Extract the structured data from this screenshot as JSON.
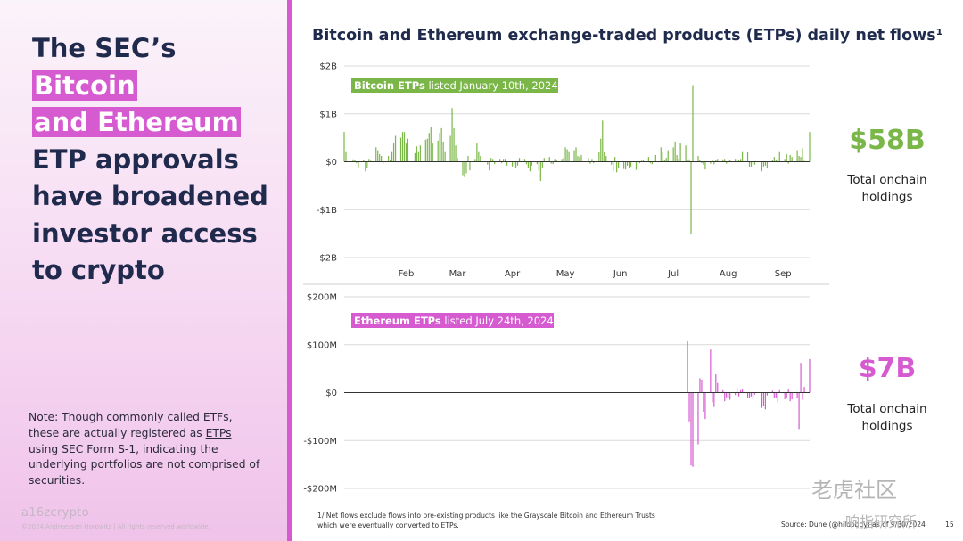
{
  "headline": {
    "line1": "The SEC’s ",
    "hl1": "Bitcoin",
    "hl2": "and Ethereum",
    "rest1": "ETP approvals",
    "rest2": "have broadened",
    "rest3": "investor access",
    "rest4": "to crypto"
  },
  "note": {
    "before": "Note: Though commonly called ETFs, these are actually registered as ",
    "link": "ETPs",
    "after": " using SEC Form S-1, indicating the underlying portfolios are not comprised of securities."
  },
  "logo": "a16zcrypto",
  "copyright": "©2024 Andreessen Horowitz | All rights reserved worldwide.",
  "chart_title": "Bitcoin and Ethereum exchange-traded products (ETPs) daily net flows¹",
  "colors": {
    "btc": "#7ab648",
    "eth": "#d65bd1",
    "title": "#1f2a4d"
  },
  "kpis": [
    {
      "value": "$58B",
      "label": "Total onchain holdings",
      "color": "#7ab648"
    },
    {
      "value": "$7B",
      "label": "Total onchain holdings",
      "color": "#d65bd1"
    }
  ],
  "footnote": "1/ Net flows exclude flows into pre-existing products like the Grayscale Bitcoin and Ethereum Trusts which were eventually converted to ETPs.",
  "source": "Source: Dune (@hildobby) as of 9/30/2024",
  "page_number": "15",
  "watermark": {
    "line1": "老虎社区",
    "line2": "响指研究所"
  },
  "chart_data": [
    {
      "type": "bar",
      "name": "Bitcoin",
      "annotation_bold": "Bitcoin ETPs",
      "annotation_rest": " listed January 10th, 2024",
      "unit": "$B",
      "ylim": [
        -2,
        2
      ],
      "yticks": [
        2,
        1,
        0,
        -1,
        -2
      ],
      "ytick_labels": [
        "$2B",
        "$1B",
        "$0",
        "-$1B",
        "-$2B"
      ],
      "xlim": [
        "2024-01-11",
        "2024-09-30"
      ],
      "month_labels": [
        {
          "label": "Feb",
          "date": "2024-02-15"
        },
        {
          "label": "Mar",
          "date": "2024-03-15"
        },
        {
          "label": "Apr",
          "date": "2024-04-15"
        },
        {
          "label": "May",
          "date": "2024-05-15"
        },
        {
          "label": "Jun",
          "date": "2024-06-15"
        },
        {
          "label": "Jul",
          "date": "2024-07-15"
        },
        {
          "label": "Aug",
          "date": "2024-08-15"
        },
        {
          "label": "Sep",
          "date": "2024-09-15"
        }
      ],
      "points": [
        [
          "2024-01-11",
          0.62
        ],
        [
          "2024-01-12",
          0.22
        ],
        [
          "2024-01-16",
          0.05
        ],
        [
          "2024-01-17",
          0.04
        ],
        [
          "2024-01-18",
          -0.03
        ],
        [
          "2024-01-19",
          -0.12
        ],
        [
          "2024-01-22",
          0.03
        ],
        [
          "2024-01-23",
          -0.2
        ],
        [
          "2024-01-24",
          -0.14
        ],
        [
          "2024-01-25",
          0.06
        ],
        [
          "2024-01-26",
          0.02
        ],
        [
          "2024-01-29",
          0.3
        ],
        [
          "2024-01-30",
          0.24
        ],
        [
          "2024-01-31",
          0.16
        ],
        [
          "2024-02-01",
          0.12
        ],
        [
          "2024-02-02",
          -0.04
        ],
        [
          "2024-02-05",
          0.12
        ],
        [
          "2024-02-06",
          0.04
        ],
        [
          "2024-02-07",
          0.22
        ],
        [
          "2024-02-08",
          0.4
        ],
        [
          "2024-02-09",
          0.54
        ],
        [
          "2024-02-12",
          0.5
        ],
        [
          "2024-02-13",
          0.62
        ],
        [
          "2024-02-14",
          0.62
        ],
        [
          "2024-02-15",
          0.38
        ],
        [
          "2024-02-16",
          0.48
        ],
        [
          "2024-02-20",
          0.18
        ],
        [
          "2024-02-21",
          0.32
        ],
        [
          "2024-02-22",
          0.22
        ],
        [
          "2024-02-23",
          0.34
        ],
        [
          "2024-02-26",
          0.46
        ],
        [
          "2024-02-27",
          0.48
        ],
        [
          "2024-02-28",
          0.6
        ],
        [
          "2024-02-29",
          0.72
        ],
        [
          "2024-03-01",
          0.38
        ],
        [
          "2024-03-04",
          0.44
        ],
        [
          "2024-03-05",
          0.6
        ],
        [
          "2024-03-06",
          0.7
        ],
        [
          "2024-03-07",
          0.42
        ],
        [
          "2024-03-08",
          0.22
        ],
        [
          "2024-03-11",
          0.54
        ],
        [
          "2024-03-12",
          1.12
        ],
        [
          "2024-03-13",
          0.7
        ],
        [
          "2024-03-14",
          0.34
        ],
        [
          "2024-03-15",
          0.08
        ],
        [
          "2024-03-18",
          -0.28
        ],
        [
          "2024-03-19",
          -0.32
        ],
        [
          "2024-03-20",
          -0.24
        ],
        [
          "2024-03-21",
          0.12
        ],
        [
          "2024-03-22",
          -0.18
        ],
        [
          "2024-03-25",
          0.06
        ],
        [
          "2024-03-26",
          0.38
        ],
        [
          "2024-03-27",
          0.22
        ],
        [
          "2024-03-28",
          0.12
        ],
        [
          "2024-04-01",
          -0.06
        ],
        [
          "2024-04-02",
          -0.18
        ],
        [
          "2024-04-03",
          0.08
        ],
        [
          "2024-04-04",
          0.06
        ],
        [
          "2024-04-05",
          -0.05
        ],
        [
          "2024-04-08",
          0.06
        ],
        [
          "2024-04-09",
          -0.03
        ],
        [
          "2024-04-10",
          0.06
        ],
        [
          "2024-04-11",
          0.06
        ],
        [
          "2024-04-12",
          -0.08
        ],
        [
          "2024-04-15",
          -0.1
        ],
        [
          "2024-04-16",
          -0.06
        ],
        [
          "2024-04-17",
          -0.14
        ],
        [
          "2024-04-18",
          -0.08
        ],
        [
          "2024-04-19",
          0.08
        ],
        [
          "2024-04-22",
          0.06
        ],
        [
          "2024-04-23",
          -0.05
        ],
        [
          "2024-04-24",
          -0.12
        ],
        [
          "2024-04-25",
          -0.2
        ],
        [
          "2024-04-26",
          -0.08
        ],
        [
          "2024-04-29",
          -0.05
        ],
        [
          "2024-04-30",
          -0.18
        ],
        [
          "2024-05-01",
          -0.4
        ],
        [
          "2024-05-02",
          -0.12
        ],
        [
          "2024-05-03",
          0.08
        ],
        [
          "2024-05-06",
          0.1
        ],
        [
          "2024-05-07",
          -0.04
        ],
        [
          "2024-05-08",
          -0.05
        ],
        [
          "2024-05-09",
          0.06
        ],
        [
          "2024-05-10",
          0.04
        ],
        [
          "2024-05-13",
          0.06
        ],
        [
          "2024-05-14",
          0.08
        ],
        [
          "2024-05-15",
          0.3
        ],
        [
          "2024-05-16",
          0.26
        ],
        [
          "2024-05-17",
          0.22
        ],
        [
          "2024-05-20",
          0.24
        ],
        [
          "2024-05-21",
          0.3
        ],
        [
          "2024-05-22",
          0.12
        ],
        [
          "2024-05-23",
          0.1
        ],
        [
          "2024-05-24",
          0.14
        ],
        [
          "2024-05-28",
          0.08
        ],
        [
          "2024-05-29",
          -0.04
        ],
        [
          "2024-05-30",
          0.06
        ],
        [
          "2024-05-31",
          -0.03
        ],
        [
          "2024-06-03",
          0.2
        ],
        [
          "2024-06-04",
          0.48
        ],
        [
          "2024-06-05",
          0.86
        ],
        [
          "2024-06-06",
          0.2
        ],
        [
          "2024-06-07",
          0.12
        ],
        [
          "2024-06-10",
          -0.06
        ],
        [
          "2024-06-11",
          -0.2
        ],
        [
          "2024-06-12",
          0.1
        ],
        [
          "2024-06-13",
          -0.22
        ],
        [
          "2024-06-14",
          -0.14
        ],
        [
          "2024-06-17",
          -0.15
        ],
        [
          "2024-06-18",
          -0.16
        ],
        [
          "2024-06-19",
          -0.08
        ],
        [
          "2024-06-20",
          -0.14
        ],
        [
          "2024-06-21",
          -0.1
        ],
        [
          "2024-06-24",
          -0.17
        ],
        [
          "2024-06-25",
          0.03
        ],
        [
          "2024-06-26",
          -0.03
        ],
        [
          "2024-06-27",
          0.02
        ],
        [
          "2024-06-28",
          0.04
        ],
        [
          "2024-07-01",
          0.1
        ],
        [
          "2024-07-02",
          -0.03
        ],
        [
          "2024-07-03",
          -0.05
        ],
        [
          "2024-07-05",
          0.14
        ],
        [
          "2024-07-08",
          0.3
        ],
        [
          "2024-07-09",
          0.2
        ],
        [
          "2024-07-10",
          0.04
        ],
        [
          "2024-07-11",
          0.08
        ],
        [
          "2024-07-12",
          0.24
        ],
        [
          "2024-07-15",
          0.3
        ],
        [
          "2024-07-16",
          0.42
        ],
        [
          "2024-07-17",
          0.14
        ],
        [
          "2024-07-18",
          0.06
        ],
        [
          "2024-07-19",
          0.38
        ],
        [
          "2024-07-22",
          0.34
        ],
        [
          "2024-07-23",
          0.04
        ],
        [
          "2024-07-24",
          0.05
        ],
        [
          "2024-07-25",
          -1.5
        ],
        [
          "2024-07-26",
          1.6
        ],
        [
          "2024-07-29",
          0.12
        ],
        [
          "2024-07-30",
          0.04
        ],
        [
          "2024-07-31",
          -0.03
        ],
        [
          "2024-08-01",
          -0.06
        ],
        [
          "2024-08-02",
          -0.16
        ],
        [
          "2024-08-05",
          -0.04
        ],
        [
          "2024-08-06",
          0.04
        ],
        [
          "2024-08-07",
          -0.05
        ],
        [
          "2024-08-08",
          0.04
        ],
        [
          "2024-08-09",
          0.06
        ],
        [
          "2024-08-12",
          0.05
        ],
        [
          "2024-08-13",
          0.06
        ],
        [
          "2024-08-14",
          -0.04
        ],
        [
          "2024-08-15",
          0.02
        ],
        [
          "2024-08-16",
          0.04
        ],
        [
          "2024-08-19",
          0.06
        ],
        [
          "2024-08-20",
          0.06
        ],
        [
          "2024-08-21",
          0.04
        ],
        [
          "2024-08-22",
          0.06
        ],
        [
          "2024-08-23",
          0.22
        ],
        [
          "2024-08-26",
          0.2
        ],
        [
          "2024-08-27",
          -0.1
        ],
        [
          "2024-08-28",
          -0.1
        ],
        [
          "2024-08-29",
          -0.04
        ],
        [
          "2024-08-30",
          -0.06
        ],
        [
          "2024-09-03",
          -0.2
        ],
        [
          "2024-09-04",
          -0.1
        ],
        [
          "2024-09-05",
          -0.08
        ],
        [
          "2024-09-06",
          -0.14
        ],
        [
          "2024-09-09",
          0.04
        ],
        [
          "2024-09-10",
          0.1
        ],
        [
          "2024-09-11",
          0.04
        ],
        [
          "2024-09-12",
          0.06
        ],
        [
          "2024-09-13",
          0.22
        ],
        [
          "2024-09-16",
          0.06
        ],
        [
          "2024-09-17",
          0.16
        ],
        [
          "2024-09-18",
          -0.04
        ],
        [
          "2024-09-19",
          0.14
        ],
        [
          "2024-09-20",
          0.1
        ],
        [
          "2024-09-23",
          0.24
        ],
        [
          "2024-09-24",
          0.12
        ],
        [
          "2024-09-25",
          0.1
        ],
        [
          "2024-09-26",
          0.28
        ],
        [
          "2024-09-27",
          0.02
        ],
        [
          "2024-09-30",
          0.62
        ]
      ]
    },
    {
      "type": "bar",
      "name": "Ethereum",
      "annotation_bold": "Ethereum ETPs",
      "annotation_rest": " listed July 24th, 2024",
      "unit": "$M",
      "ylim": [
        -200,
        200
      ],
      "yticks": [
        200,
        100,
        0,
        -100,
        -200
      ],
      "ytick_labels": [
        "$200M",
        "$100M",
        "$0",
        "-$100M",
        "-$200M"
      ],
      "xlim": [
        "2024-01-11",
        "2024-09-30"
      ],
      "points": [
        [
          "2024-07-23",
          107
        ],
        [
          "2024-07-24",
          -60
        ],
        [
          "2024-07-25",
          -152
        ],
        [
          "2024-07-26",
          -155
        ],
        [
          "2024-07-29",
          -108
        ],
        [
          "2024-07-30",
          30
        ],
        [
          "2024-07-31",
          27
        ],
        [
          "2024-08-01",
          -40
        ],
        [
          "2024-08-02",
          -55
        ],
        [
          "2024-08-05",
          90
        ],
        [
          "2024-08-06",
          -20
        ],
        [
          "2024-08-07",
          -30
        ],
        [
          "2024-08-08",
          38
        ],
        [
          "2024-08-09",
          20
        ],
        [
          "2024-08-12",
          5
        ],
        [
          "2024-08-13",
          -18
        ],
        [
          "2024-08-14",
          -10
        ],
        [
          "2024-08-15",
          -12
        ],
        [
          "2024-08-16",
          -15
        ],
        [
          "2024-08-19",
          -5
        ],
        [
          "2024-08-20",
          10
        ],
        [
          "2024-08-21",
          -8
        ],
        [
          "2024-08-22",
          5
        ],
        [
          "2024-08-23",
          8
        ],
        [
          "2024-08-26",
          -10
        ],
        [
          "2024-08-27",
          -12
        ],
        [
          "2024-08-28",
          -8
        ],
        [
          "2024-08-29",
          -15
        ],
        [
          "2024-08-30",
          -4
        ],
        [
          "2024-09-03",
          -32
        ],
        [
          "2024-09-04",
          -28
        ],
        [
          "2024-09-05",
          -35
        ],
        [
          "2024-09-06",
          -6
        ],
        [
          "2024-09-09",
          4
        ],
        [
          "2024-09-10",
          -10
        ],
        [
          "2024-09-11",
          -12
        ],
        [
          "2024-09-12",
          -20
        ],
        [
          "2024-09-13",
          5
        ],
        [
          "2024-09-16",
          -14
        ],
        [
          "2024-09-17",
          -10
        ],
        [
          "2024-09-18",
          8
        ],
        [
          "2024-09-19",
          -18
        ],
        [
          "2024-09-20",
          -14
        ],
        [
          "2024-09-23",
          -12
        ],
        [
          "2024-09-24",
          -76
        ],
        [
          "2024-09-25",
          62
        ],
        [
          "2024-09-26",
          -15
        ],
        [
          "2024-09-27",
          12
        ],
        [
          "2024-09-30",
          70
        ]
      ]
    }
  ]
}
